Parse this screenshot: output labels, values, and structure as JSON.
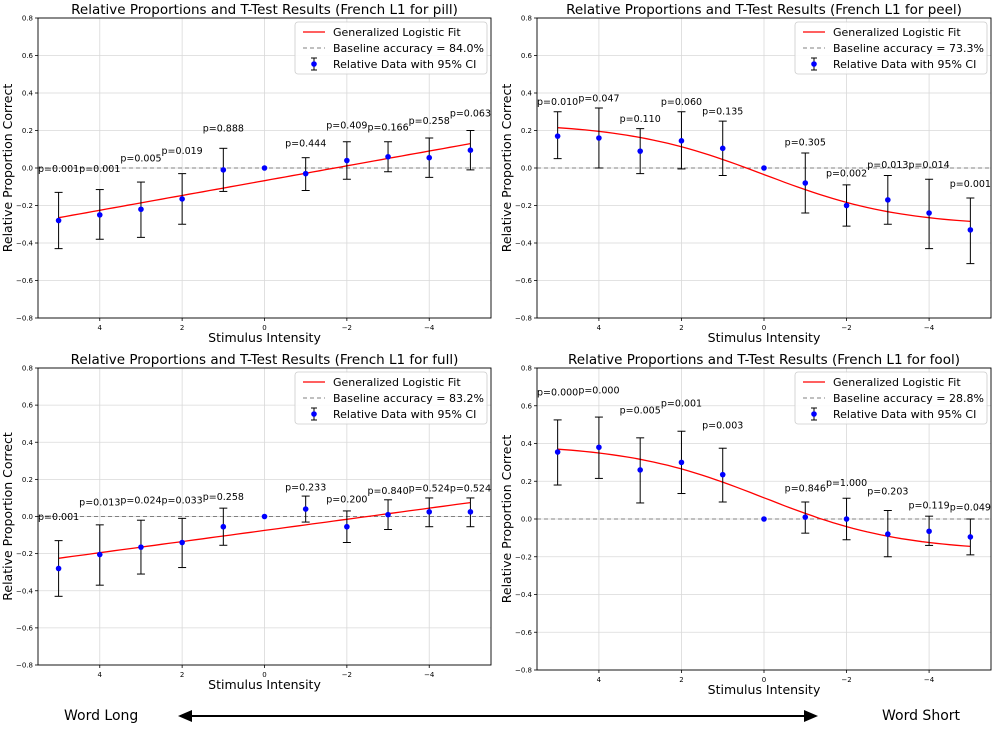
{
  "chart_data": [
    {
      "type": "scatter",
      "title": "Relative Proportions and T-Test Results (French L1 for pill)",
      "xlabel": "Stimulus Intensity",
      "ylabel": "Relative Proportion Correct",
      "xlim": [
        5.5,
        -5.5
      ],
      "ylim": [
        -0.8,
        0.8
      ],
      "xticks": [
        4,
        2,
        0,
        -2,
        -4
      ],
      "xtick_labels": [
        "4",
        "2",
        "0",
        "−2",
        "−4"
      ],
      "yticks": [
        -0.8,
        -0.6,
        -0.4,
        -0.2,
        0.0,
        0.2,
        0.4,
        0.6,
        0.8
      ],
      "ytick_labels": [
        "−0.8",
        "−0.6",
        "−0.4",
        "−0.2",
        "0.0",
        "0.2",
        "0.4",
        "0.6",
        "0.8"
      ],
      "grid": true,
      "legend_position": "top-right",
      "legend": [
        "Generalized Logistic Fit",
        "Baseline accuracy = 84.0%",
        "Relative Data with 95% CI"
      ],
      "colors": {
        "fit": "#ff0000",
        "points": "#0000ff",
        "baseline": "#808080",
        "errorbar": "#000000"
      },
      "x": [
        5,
        4,
        3,
        2,
        1,
        0,
        -1,
        -2,
        -3,
        -4,
        -5
      ],
      "y": [
        -0.28,
        -0.25,
        -0.22,
        -0.165,
        -0.01,
        0.0,
        -0.03,
        0.04,
        0.06,
        0.055,
        0.095
      ],
      "err_low": [
        -0.43,
        -0.38,
        -0.37,
        -0.3,
        -0.125,
        null,
        -0.12,
        -0.06,
        -0.02,
        -0.05,
        -0.01
      ],
      "err_high": [
        -0.13,
        -0.115,
        -0.075,
        -0.03,
        0.105,
        null,
        0.055,
        0.14,
        0.14,
        0.16,
        0.2
      ],
      "fit_start": -0.265,
      "fit_end": 0.13,
      "fit_shape": "linear",
      "pvalues": [
        "p=0.001",
        "p=0.001",
        "p=0.005",
        "p=0.019",
        "p=0.888",
        "",
        "p=0.444",
        "p=0.409",
        "p=0.166",
        "p=0.258",
        "p=0.063"
      ],
      "pvalue_y": [
        -0.02,
        -0.02,
        0.035,
        0.075,
        0.195,
        null,
        0.115,
        0.21,
        0.2,
        0.235,
        0.275
      ]
    },
    {
      "type": "scatter",
      "title": "Relative Proportions and T-Test Results (French L1 for peel)",
      "xlabel": "Stimulus Intensity",
      "ylabel": "Relative Proportion Correct",
      "xlim": [
        5.5,
        -5.5
      ],
      "ylim": [
        -0.8,
        0.8
      ],
      "xticks": [
        4,
        2,
        0,
        -2,
        -4
      ],
      "xtick_labels": [
        "4",
        "2",
        "0",
        "−2",
        "−4"
      ],
      "yticks": [
        -0.8,
        -0.6,
        -0.4,
        -0.2,
        0.0,
        0.2,
        0.4,
        0.6,
        0.8
      ],
      "ytick_labels": [
        "−0.8",
        "−0.6",
        "−0.4",
        "−0.2",
        "0.0",
        "0.2",
        "0.4",
        "0.6",
        "0.8"
      ],
      "grid": true,
      "legend_position": "top-right",
      "legend": [
        "Generalized Logistic Fit",
        "Baseline accuracy = 73.3%",
        "Relative Data with 95% CI"
      ],
      "colors": {
        "fit": "#ff0000",
        "points": "#0000ff",
        "baseline": "#808080",
        "errorbar": "#000000"
      },
      "x": [
        5,
        4,
        3,
        2,
        1,
        0,
        -1,
        -2,
        -3,
        -4,
        -5
      ],
      "y": [
        0.17,
        0.16,
        0.09,
        0.145,
        0.105,
        0.0,
        -0.08,
        -0.2,
        -0.17,
        -0.24,
        -0.33
      ],
      "err_low": [
        0.05,
        0.0,
        -0.03,
        -0.005,
        -0.04,
        null,
        -0.24,
        -0.31,
        -0.3,
        -0.43,
        -0.51
      ],
      "err_high": [
        0.3,
        0.32,
        0.21,
        0.3,
        0.25,
        null,
        0.08,
        -0.09,
        -0.04,
        -0.06,
        -0.16
      ],
      "fit_start": 0.215,
      "fit_end": -0.285,
      "fit_shape": "sigmoid",
      "pvalues": [
        "p=0.010",
        "p=0.047",
        "p=0.110",
        "p=0.060",
        "p=0.135",
        "",
        "p=0.305",
        "p=0.002",
        "p=0.013",
        "p=0.014",
        "p=0.001"
      ],
      "pvalue_y": [
        0.335,
        0.355,
        0.245,
        0.335,
        0.285,
        null,
        0.12,
        -0.045,
        0.0,
        0.0,
        -0.1
      ]
    },
    {
      "type": "scatter",
      "title": "Relative Proportions and T-Test Results (French L1 for full)",
      "xlabel": "Stimulus Intensity",
      "ylabel": "Relative Proportion Correct",
      "xlim": [
        5.5,
        -5.5
      ],
      "ylim": [
        -0.8,
        0.8
      ],
      "xticks": [
        4,
        2,
        0,
        -2,
        -4
      ],
      "xtick_labels": [
        "4",
        "2",
        "0",
        "−2",
        "−4"
      ],
      "yticks": [
        -0.8,
        -0.6,
        -0.4,
        -0.2,
        0.0,
        0.2,
        0.4,
        0.6,
        0.8
      ],
      "ytick_labels": [
        "−0.8",
        "−0.6",
        "−0.4",
        "−0.2",
        "0.0",
        "0.2",
        "0.4",
        "0.6",
        "0.8"
      ],
      "grid": true,
      "legend_position": "top-right",
      "legend": [
        "Generalized Logistic Fit",
        "Baseline accuracy = 83.2%",
        "Relative Data with 95% CI"
      ],
      "colors": {
        "fit": "#ff0000",
        "points": "#0000ff",
        "baseline": "#808080",
        "errorbar": "#000000"
      },
      "x": [
        5,
        4,
        3,
        2,
        1,
        0,
        -1,
        -2,
        -3,
        -4,
        -5
      ],
      "y": [
        -0.28,
        -0.205,
        -0.165,
        -0.14,
        -0.055,
        0.0,
        0.04,
        -0.055,
        0.01,
        0.025,
        0.025
      ],
      "err_low": [
        -0.43,
        -0.37,
        -0.31,
        -0.275,
        -0.155,
        null,
        -0.03,
        -0.14,
        -0.07,
        -0.055,
        -0.055
      ],
      "err_high": [
        -0.13,
        -0.045,
        -0.02,
        -0.01,
        0.045,
        null,
        0.11,
        0.03,
        0.09,
        0.1,
        0.1
      ],
      "fit_start": -0.225,
      "fit_end": 0.075,
      "fit_shape": "linear",
      "pvalues": [
        "p=0.001",
        "p=0.013",
        "p=0.024",
        "p=0.033",
        "p=0.258",
        "",
        "p=0.233",
        "p=0.200",
        "p=0.840",
        "p=0.524",
        "p=0.524"
      ],
      "pvalue_y": [
        -0.02,
        0.06,
        0.07,
        0.07,
        0.09,
        null,
        0.14,
        0.075,
        0.12,
        0.135,
        0.135
      ]
    },
    {
      "type": "scatter",
      "title": "Relative Proportions and T-Test Results (French L1 for fool)",
      "xlabel": "Stimulus Intensity",
      "ylabel": "Relative Proportion Correct",
      "xlim": [
        5.5,
        -5.5
      ],
      "ylim": [
        -0.8,
        0.8
      ],
      "xticks": [
        4,
        2,
        0,
        -2,
        -4
      ],
      "xtick_labels": [
        "4",
        "2",
        "0",
        "−2",
        "−4"
      ],
      "yticks": [
        -0.8,
        -0.6,
        -0.4,
        -0.2,
        0.0,
        0.2,
        0.4,
        0.6,
        0.8
      ],
      "ytick_labels": [
        "−0.8",
        "−0.6",
        "−0.4",
        "−0.2",
        "0.0",
        "0.2",
        "0.4",
        "0.6",
        "0.8"
      ],
      "grid": true,
      "legend_position": "top-right",
      "legend": [
        "Generalized Logistic Fit",
        "Baseline accuracy = 28.8%",
        "Relative Data with 95% CI"
      ],
      "colors": {
        "fit": "#ff0000",
        "points": "#0000ff",
        "baseline": "#808080",
        "errorbar": "#000000"
      },
      "x": [
        5,
        4,
        3,
        2,
        1,
        0,
        -1,
        -2,
        -3,
        -4,
        -5
      ],
      "y": [
        0.355,
        0.38,
        0.26,
        0.3,
        0.235,
        0.0,
        0.01,
        0.0,
        -0.08,
        -0.065,
        -0.095
      ],
      "err_low": [
        0.18,
        0.215,
        0.085,
        0.135,
        0.09,
        null,
        -0.075,
        -0.11,
        -0.2,
        -0.14,
        -0.19
      ],
      "err_high": [
        0.525,
        0.54,
        0.43,
        0.465,
        0.375,
        null,
        0.09,
        0.11,
        0.045,
        0.015,
        0.0
      ],
      "fit_start": 0.37,
      "fit_end": -0.145,
      "fit_shape": "sigmoid",
      "pvalues": [
        "p=0.000",
        "p=0.000",
        "p=0.005",
        "p=0.001",
        "p=0.003",
        "",
        "p=0.846",
        "p=1.000",
        "p=0.203",
        "p=0.119",
        "p=0.049"
      ],
      "pvalue_y": [
        0.655,
        0.665,
        0.56,
        0.595,
        0.48,
        null,
        0.145,
        0.175,
        0.13,
        0.055,
        0.045
      ]
    }
  ],
  "footer": {
    "left_label": "Word Long",
    "right_label": "Word Short"
  }
}
